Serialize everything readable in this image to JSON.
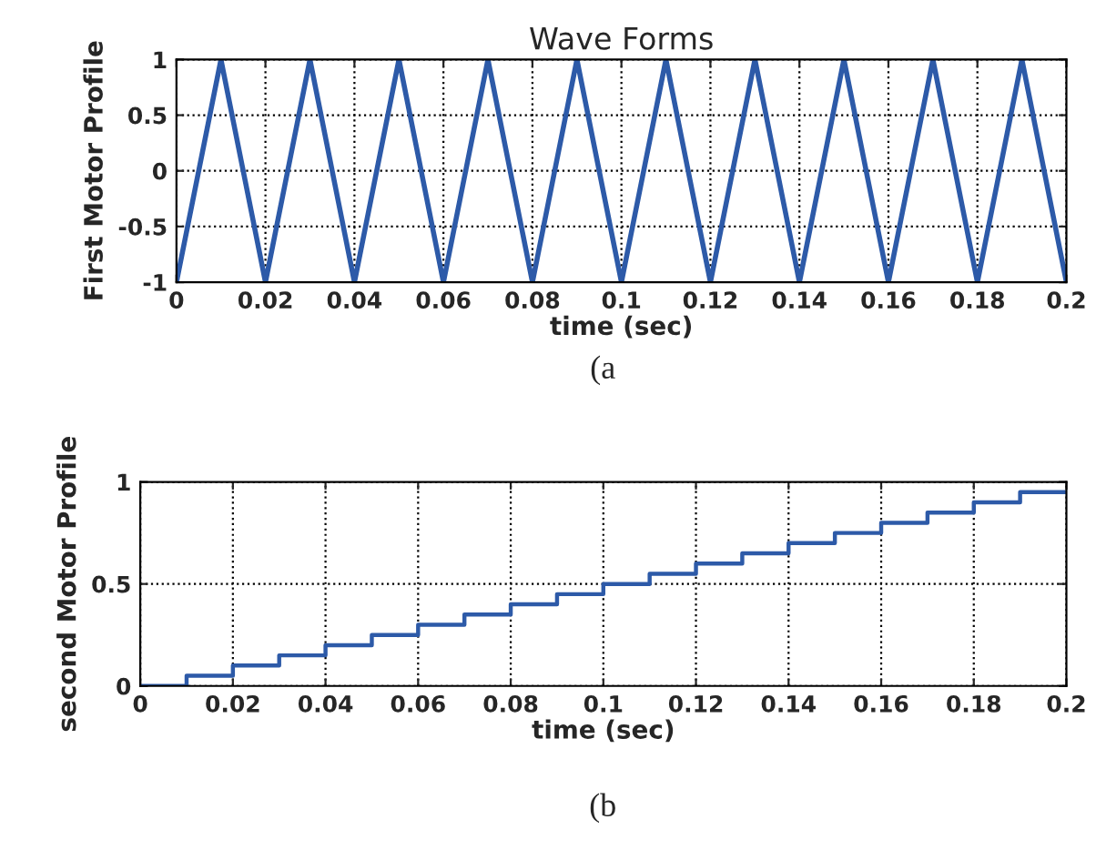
{
  "chart_data": [
    {
      "type": "line",
      "title": "Wave Forms",
      "xlabel": "time (sec)",
      "ylabel": "First Motor Profile",
      "annotations": [
        "(a"
      ],
      "x": [
        0,
        0.01,
        0.02,
        0.03,
        0.04,
        0.05,
        0.06,
        0.07,
        0.08,
        0.09,
        0.1,
        0.11,
        0.12,
        0.13,
        0.14,
        0.15,
        0.16,
        0.17,
        0.18,
        0.19,
        0.2
      ],
      "series": [
        {
          "color": "#2d5aa8",
          "values": [
            -1,
            1,
            -1,
            1,
            -1,
            1,
            -1,
            1,
            -1,
            1,
            -1,
            1,
            -1,
            1,
            -1,
            1,
            -1,
            1,
            -1,
            1,
            -1
          ]
        }
      ],
      "xlim": [
        0,
        0.2
      ],
      "xticks": [
        0,
        0.02,
        0.04,
        0.06,
        0.08,
        0.1,
        0.12,
        0.14,
        0.16,
        0.18,
        0.2
      ],
      "ylim": [
        -1,
        1
      ],
      "yticks": [
        -1,
        -0.5,
        0,
        0.5,
        1
      ],
      "grid": true,
      "line_style": "solid"
    },
    {
      "type": "step",
      "xlabel": "time (sec)",
      "ylabel": "second Motor Profile",
      "annotations": [
        "(b"
      ],
      "x": [
        0,
        0.01,
        0.02,
        0.03,
        0.04,
        0.05,
        0.06,
        0.07,
        0.08,
        0.09,
        0.1,
        0.11,
        0.12,
        0.13,
        0.14,
        0.15,
        0.16,
        0.17,
        0.18,
        0.19,
        0.2
      ],
      "series": [
        {
          "color": "#2d5aa8",
          "values": [
            0,
            0.05,
            0.1,
            0.15,
            0.2,
            0.25,
            0.3,
            0.35,
            0.4,
            0.45,
            0.5,
            0.55,
            0.6,
            0.65,
            0.7,
            0.75,
            0.8,
            0.85,
            0.9,
            0.95,
            0.95
          ]
        }
      ],
      "xlim": [
        0,
        0.2
      ],
      "xticks": [
        0,
        0.02,
        0.04,
        0.06,
        0.08,
        0.1,
        0.12,
        0.14,
        0.16,
        0.18,
        0.2
      ],
      "ylim": [
        0,
        1
      ],
      "yticks": [
        0,
        0.5,
        1
      ],
      "grid": true,
      "line_style": "solid"
    }
  ]
}
